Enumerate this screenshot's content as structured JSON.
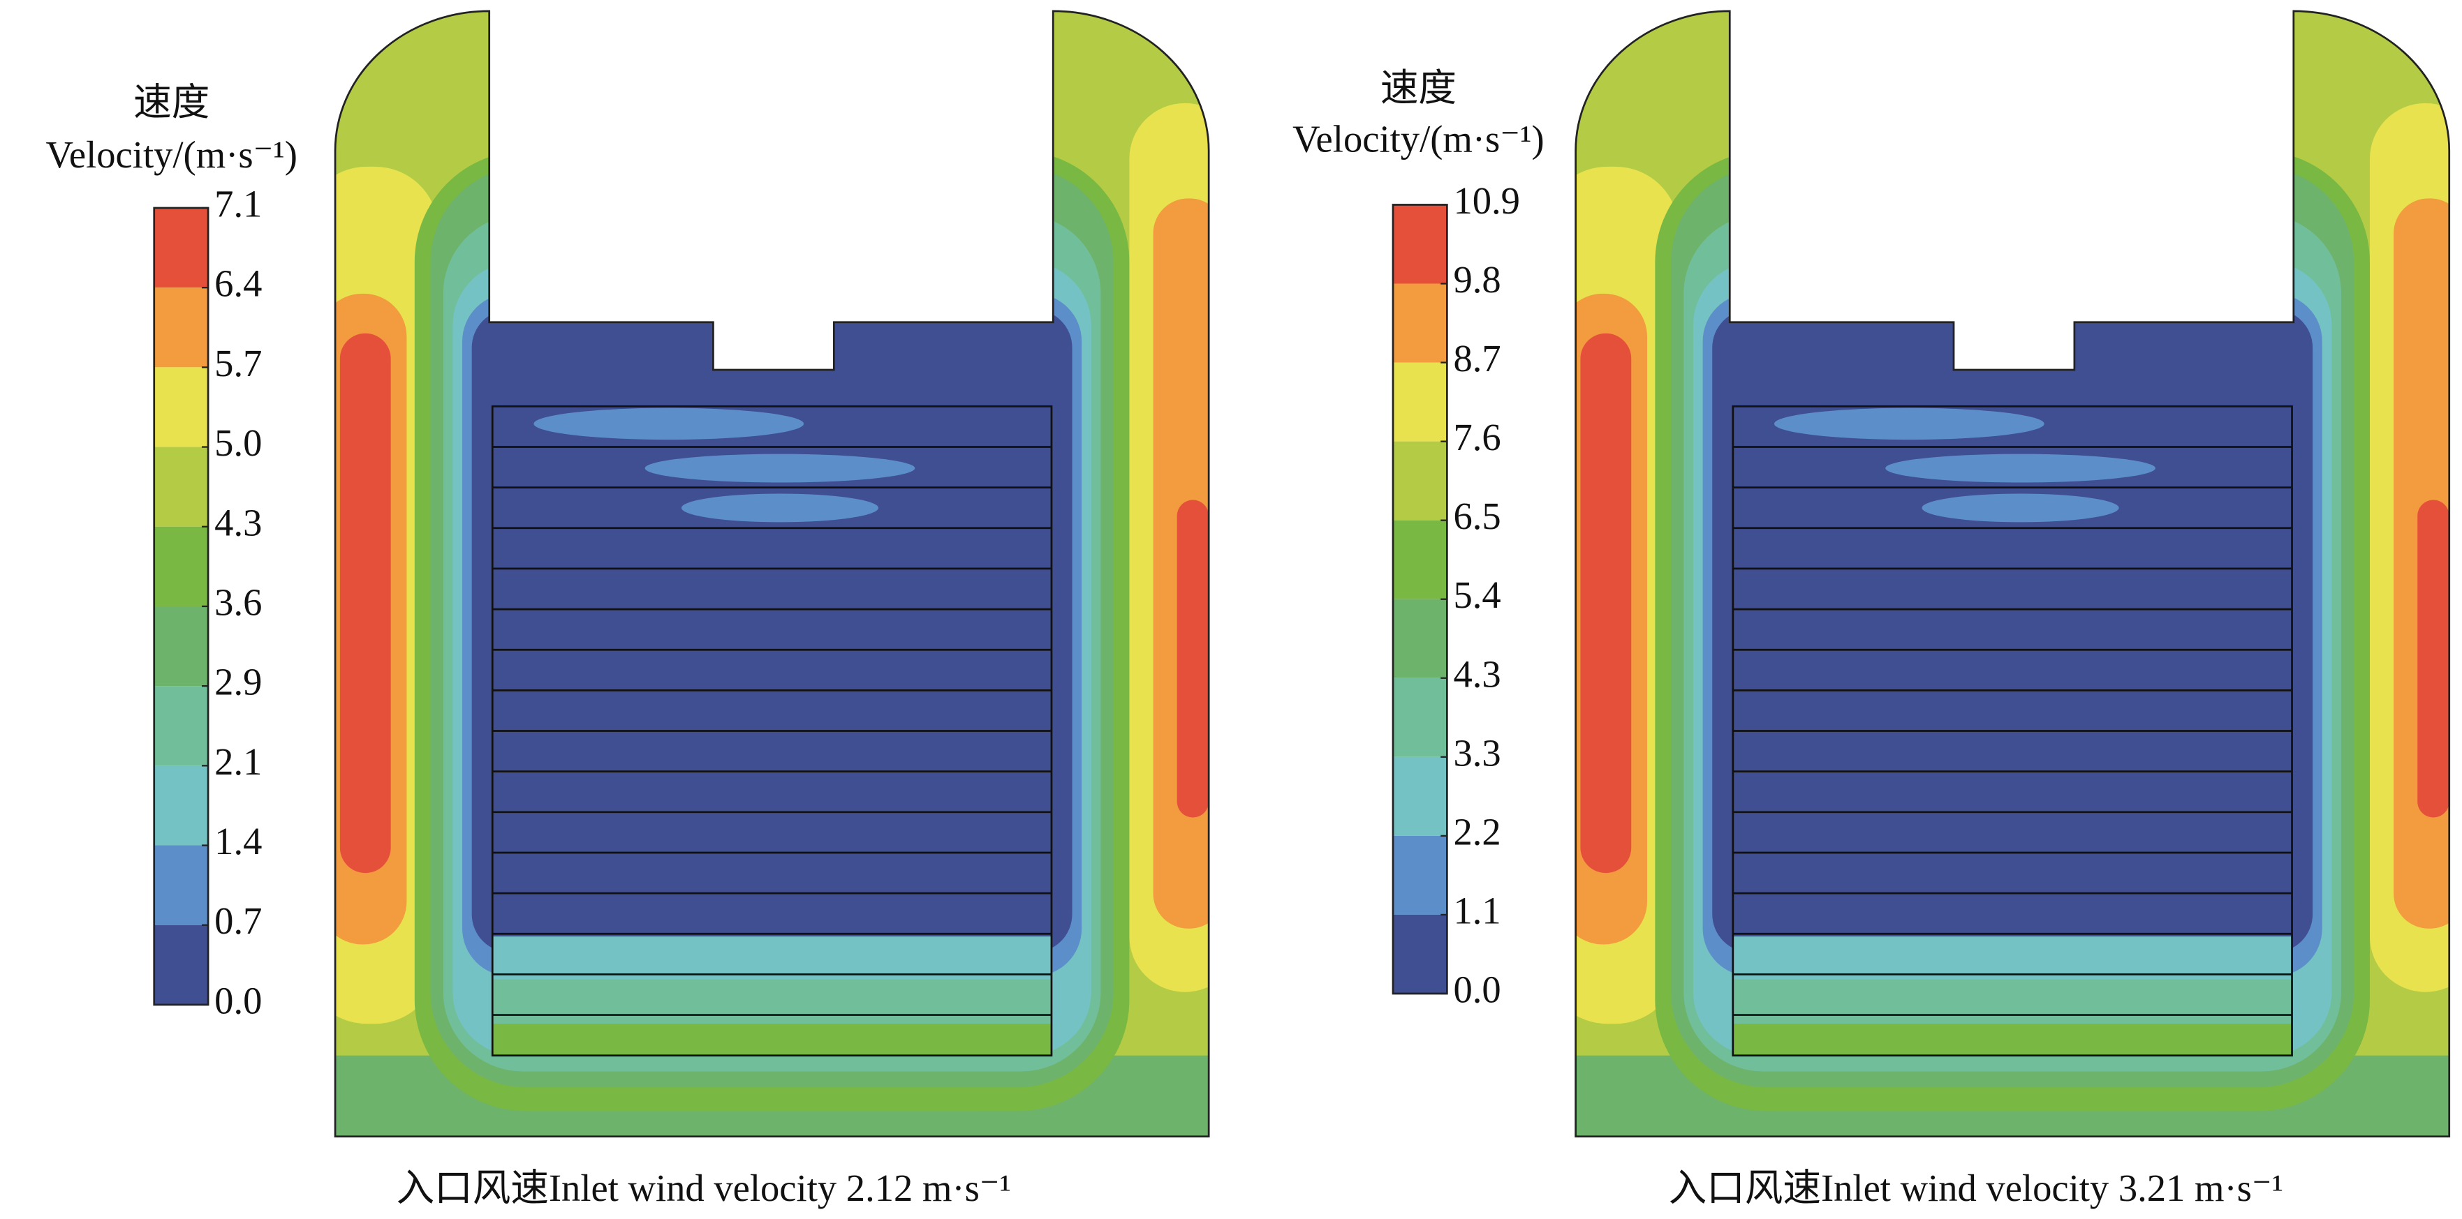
{
  "panels": [
    {
      "legend_title_cn": "速度",
      "legend_title": "Velocity/(m·s⁻¹)",
      "legend_ticks": [
        "7.1",
        "6.4",
        "5.7",
        "5.0",
        "4.3",
        "3.6",
        "2.9",
        "2.1",
        "1.4",
        "0.7",
        "0.0"
      ],
      "caption": "入口风速Inlet wind velocity 2.12 m·s⁻¹"
    },
    {
      "legend_title_cn": "速度",
      "legend_title": "Velocity/(m·s⁻¹)",
      "legend_ticks": [
        "10.9",
        "9.8",
        "8.7",
        "7.6",
        "6.5",
        "5.4",
        "4.3",
        "3.3",
        "2.2",
        "1.1",
        "0.0"
      ],
      "caption": "入口风速Inlet wind velocity 3.21 m·s⁻¹"
    }
  ]
}
